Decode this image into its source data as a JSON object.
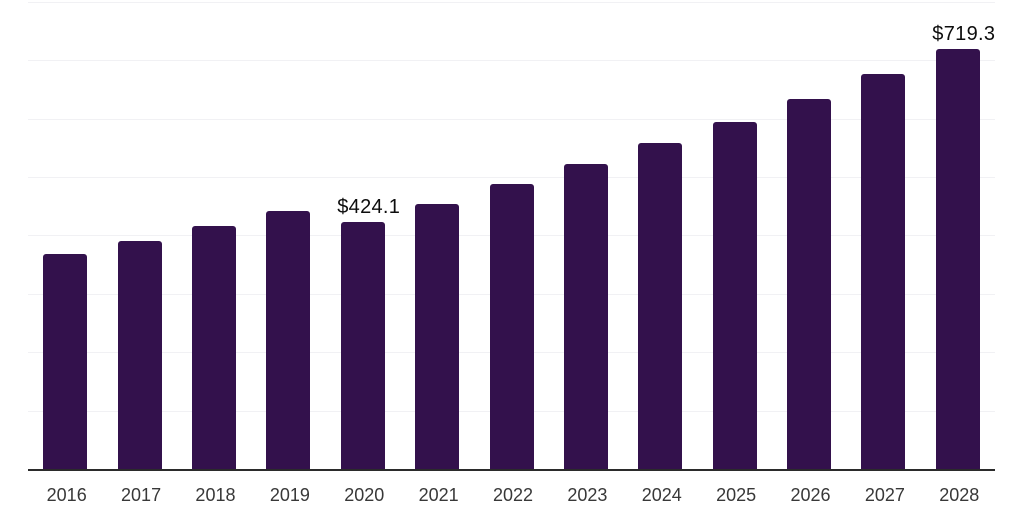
{
  "chart_data": {
    "type": "bar",
    "title": "",
    "xlabel": "",
    "ylabel": "",
    "categories": [
      "2016",
      "2017",
      "2018",
      "2019",
      "2020",
      "2021",
      "2022",
      "2023",
      "2024",
      "2025",
      "2026",
      "2027",
      "2028"
    ],
    "values": [
      368.7,
      391.0,
      417.1,
      442.7,
      424.1,
      455.4,
      488.4,
      523.8,
      559.1,
      595.0,
      635.0,
      676.6,
      719.3
    ],
    "bar_labels": [
      "",
      "",
      "",
      "",
      "$424.1",
      "",
      "",
      "",
      "",
      "",
      "",
      "",
      "$719.3"
    ],
    "labeled_points": [
      {
        "category": "2020",
        "label": "$424.1",
        "value": 424.1
      },
      {
        "category": "2028",
        "label": "$719.3",
        "value": 719.3
      }
    ],
    "ylim": [
      0,
      800
    ],
    "gridline_step": 100,
    "grid": true,
    "y_tick_labels_shown": false,
    "legend": null,
    "colors": {
      "bar": "#33114C",
      "gridline": "#F1F1F4",
      "axis": "#2B2B2B",
      "value_label": "#0D0D0D",
      "tick_label": "#383838",
      "background": "#FFFFFF"
    }
  }
}
